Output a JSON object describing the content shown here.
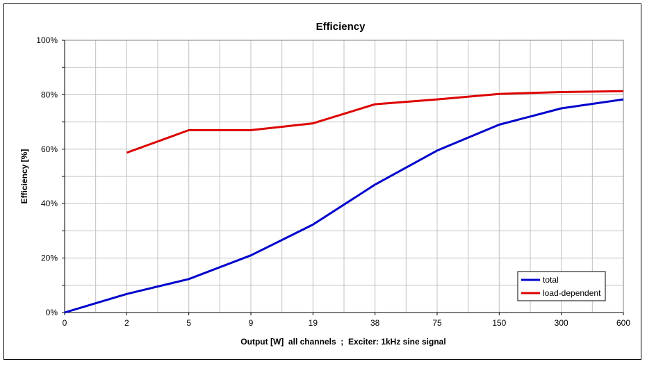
{
  "chart_data": {
    "type": "line",
    "title": "Efficiency",
    "xlabel": "Output [W]  all channels  ;  Exciter: 1kHz sine signal",
    "ylabel": "Efficiency [%]",
    "categories": [
      "0",
      "2",
      "5",
      "9",
      "19",
      "38",
      "75",
      "150",
      "300",
      "600"
    ],
    "yticks": [
      "0%",
      "20%",
      "40%",
      "60%",
      "80%",
      "100%"
    ],
    "ylim": [
      0,
      100
    ],
    "grid": true,
    "legend_position": "bottom-right",
    "series": [
      {
        "name": "total",
        "color": "#0000cc",
        "values": [
          0,
          6.8,
          12.3,
          21,
          32.3,
          47,
          59.5,
          69,
          75,
          78.3
        ]
      },
      {
        "name": "load-dependent",
        "color": "#dd0000",
        "values": [
          null,
          58.7,
          67,
          67,
          69.5,
          76.5,
          78.3,
          80.3,
          81,
          81.3
        ]
      }
    ]
  }
}
